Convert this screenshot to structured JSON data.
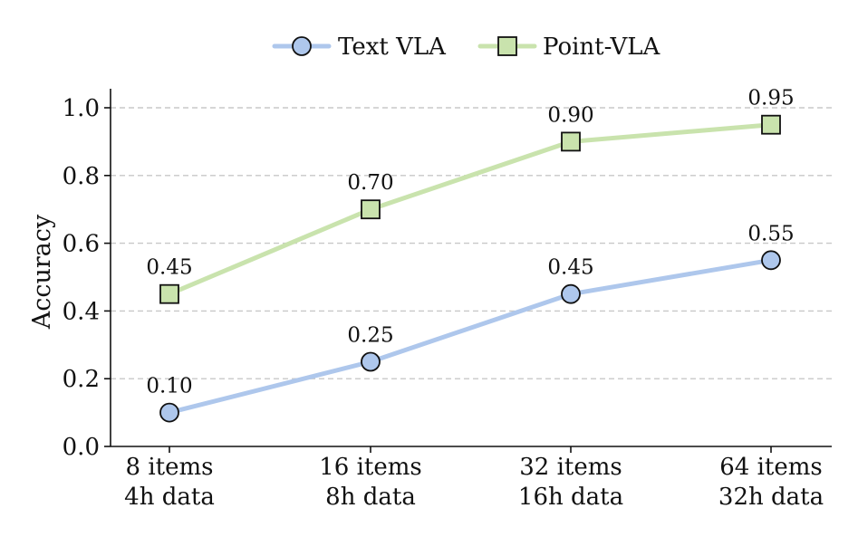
{
  "chart_data": {
    "type": "line",
    "title": "",
    "xlabel": "",
    "ylabel": "Accuracy",
    "categories": [
      [
        "8 items",
        "4h data"
      ],
      [
        "16 items",
        "8h data"
      ],
      [
        "32 items",
        "16h data"
      ],
      [
        "64 items",
        "32h data"
      ]
    ],
    "ylim": [
      0.0,
      1.05
    ],
    "yticks": [
      0.0,
      0.2,
      0.4,
      0.6,
      0.8,
      1.0
    ],
    "ytick_labels": [
      "0.0",
      "0.2",
      "0.4",
      "0.6",
      "0.8",
      "1.0"
    ],
    "grid": "horizontal dashed",
    "legend_position": "top-center",
    "series": [
      {
        "name": "Text VLA",
        "values": [
          0.1,
          0.25,
          0.45,
          0.55
        ],
        "labels": [
          "0.10",
          "0.25",
          "0.45",
          "0.55"
        ],
        "marker": "circle",
        "line_color": "#aec7ec",
        "marker_color": "#aec7ec"
      },
      {
        "name": "Point-VLA",
        "values": [
          0.45,
          0.7,
          0.9,
          0.95
        ],
        "labels": [
          "0.45",
          "0.70",
          "0.90",
          "0.95"
        ],
        "marker": "square",
        "line_color": "#c9e3ad",
        "marker_color": "#c9e3ad"
      }
    ]
  }
}
